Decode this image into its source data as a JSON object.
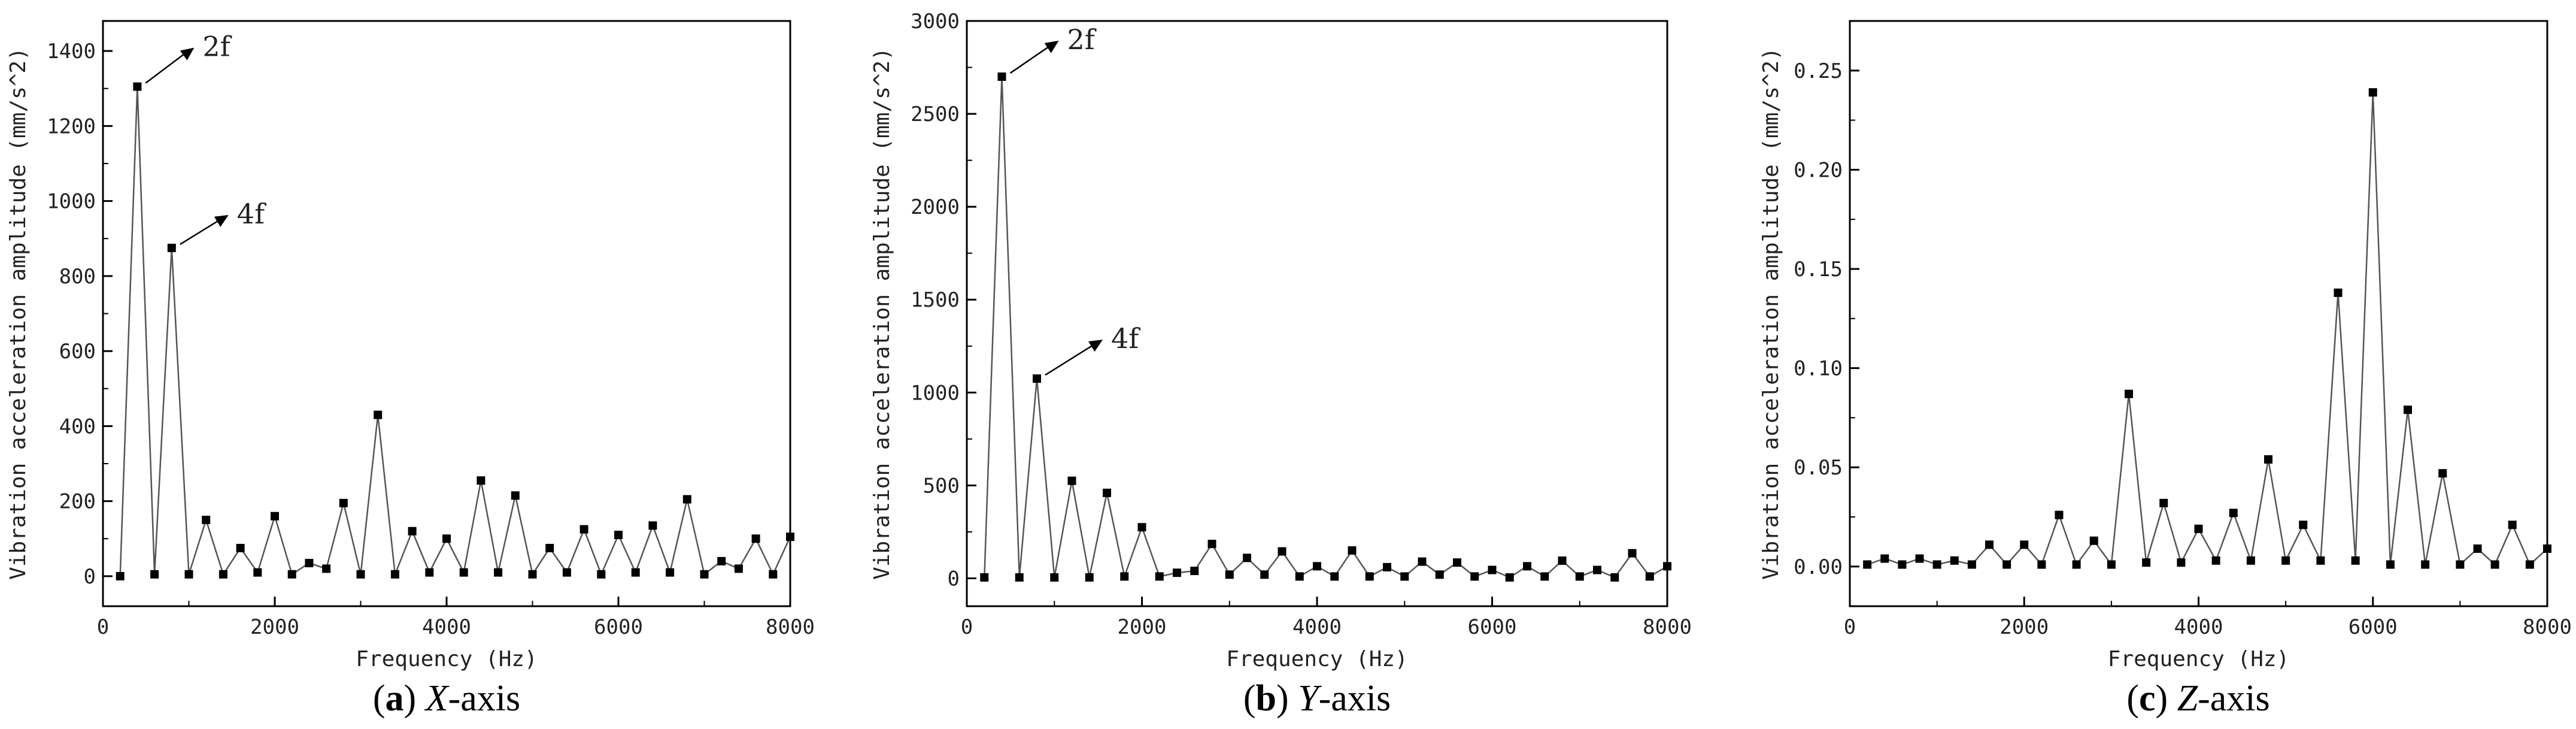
{
  "panels": [
    {
      "caption": {
        "letter": "a",
        "axis": "X",
        "suffix": "-axis"
      },
      "chart_data": {
        "type": "line",
        "xlabel": "Frequency (Hz)",
        "ylabel": "Vibration acceleration amplitude (mm/s^2)",
        "xlim": [
          0,
          8000
        ],
        "ylim": [
          -80,
          1480
        ],
        "xticks": [
          0,
          2000,
          4000,
          6000,
          8000
        ],
        "yticks": [
          0,
          200,
          400,
          600,
          800,
          1000,
          1200,
          1400
        ],
        "ytick_labels": [
          "0",
          "200",
          "400",
          "600",
          "800",
          "1000",
          "1200",
          "1400"
        ],
        "grid": false,
        "x": [
          200,
          400,
          600,
          800,
          1000,
          1200,
          1400,
          1600,
          1800,
          2000,
          2200,
          2400,
          2600,
          2800,
          3000,
          3200,
          3400,
          3600,
          3800,
          4000,
          4200,
          4400,
          4600,
          4800,
          5000,
          5200,
          5400,
          5600,
          5800,
          6000,
          6200,
          6400,
          6600,
          6800,
          7000,
          7200,
          7400,
          7600,
          7800,
          8000
        ],
        "y": [
          0,
          1305,
          5,
          875,
          5,
          150,
          5,
          75,
          10,
          160,
          5,
          35,
          20,
          195,
          5,
          430,
          5,
          120,
          10,
          100,
          10,
          255,
          10,
          215,
          5,
          75,
          10,
          125,
          5,
          110,
          10,
          135,
          10,
          205,
          5,
          40,
          20,
          100,
          5,
          105
        ],
        "annotations": [
          {
            "text": "2f",
            "x": 400,
            "y": 1305
          },
          {
            "text": "4f",
            "x": 800,
            "y": 875
          }
        ]
      }
    },
    {
      "caption": {
        "letter": "b",
        "axis": "Y",
        "suffix": "-axis"
      },
      "chart_data": {
        "type": "line",
        "xlabel": "Frequency (Hz)",
        "ylabel": "Vibration acceleration amplitude (mm/s^2)",
        "xlim": [
          0,
          8000
        ],
        "ylim": [
          -150,
          3000
        ],
        "xticks": [
          0,
          2000,
          4000,
          6000,
          8000
        ],
        "yticks": [
          0,
          500,
          1000,
          1500,
          2000,
          2500,
          3000
        ],
        "ytick_labels": [
          "0",
          "500",
          "1000",
          "1500",
          "2000",
          "2500",
          "3000"
        ],
        "grid": false,
        "x": [
          200,
          400,
          600,
          800,
          1000,
          1200,
          1400,
          1600,
          1800,
          2000,
          2200,
          2400,
          2600,
          2800,
          3000,
          3200,
          3400,
          3600,
          3800,
          4000,
          4200,
          4400,
          4600,
          4800,
          5000,
          5200,
          5400,
          5600,
          5800,
          6000,
          6200,
          6400,
          6600,
          6800,
          7000,
          7200,
          7400,
          7600,
          7800,
          8000
        ],
        "y": [
          5,
          2700,
          5,
          1075,
          5,
          525,
          5,
          460,
          10,
          275,
          10,
          30,
          40,
          185,
          20,
          110,
          20,
          145,
          10,
          65,
          10,
          150,
          10,
          60,
          10,
          90,
          20,
          85,
          10,
          45,
          5,
          65,
          10,
          95,
          10,
          45,
          5,
          135,
          10,
          65
        ],
        "annotations": [
          {
            "text": "2f",
            "x": 400,
            "y": 2700
          },
          {
            "text": "4f",
            "x": 800,
            "y": 1075
          }
        ]
      }
    },
    {
      "caption": {
        "letter": "c",
        "axis": "Z",
        "suffix": "-axis"
      },
      "chart_data": {
        "type": "line",
        "xlabel": "Frequency (Hz)",
        "ylabel": "Vibration acceleration amplitude (mm/s^2)",
        "xlim": [
          0,
          8000
        ],
        "ylim": [
          -0.02,
          0.275
        ],
        "xticks": [
          0,
          2000,
          4000,
          6000,
          8000
        ],
        "yticks": [
          0,
          0.05,
          0.1,
          0.15,
          0.2,
          0.25
        ],
        "ytick_labels": [
          "0.00",
          "0.05",
          "0.10",
          "0.15",
          "0.20",
          "0.25"
        ],
        "grid": false,
        "x": [
          200,
          400,
          600,
          800,
          1000,
          1200,
          1400,
          1600,
          1800,
          2000,
          2200,
          2400,
          2600,
          2800,
          3000,
          3200,
          3400,
          3600,
          3800,
          4000,
          4200,
          4400,
          4600,
          4800,
          5000,
          5200,
          5400,
          5600,
          5800,
          6000,
          6200,
          6400,
          6600,
          6800,
          7000,
          7200,
          7400,
          7600,
          7800,
          8000
        ],
        "y": [
          0.001,
          0.004,
          0.001,
          0.004,
          0.001,
          0.003,
          0.001,
          0.011,
          0.001,
          0.011,
          0.001,
          0.026,
          0.001,
          0.013,
          0.001,
          0.087,
          0.002,
          0.032,
          0.002,
          0.019,
          0.003,
          0.027,
          0.003,
          0.054,
          0.003,
          0.021,
          0.003,
          0.138,
          0.003,
          0.239,
          0.001,
          0.079,
          0.001,
          0.047,
          0.001,
          0.009,
          0.001,
          0.021,
          0.001,
          0.009
        ]
      }
    }
  ]
}
